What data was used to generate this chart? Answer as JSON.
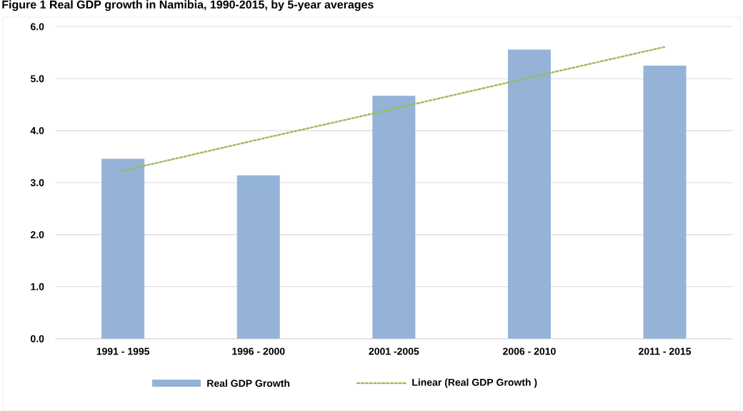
{
  "chart_data": {
    "type": "bar",
    "title": "Figure 1 Real GDP growth in Namibia, 1990-2015, by 5-year averages",
    "categories": [
      "1991 - 1995",
      "1996 - 2000",
      "2001 -2005",
      "2006 - 2010",
      "2011 - 2015"
    ],
    "series": [
      {
        "name": "Real GDP Growth",
        "color": "#95b3d7",
        "values": [
          3.46,
          3.14,
          4.67,
          5.56,
          5.25
        ]
      },
      {
        "name": "Linear (Real GDP Growth )",
        "type": "line",
        "color": "#9bbb59",
        "line_style": "dotted",
        "values": [
          3.23,
          3.83,
          4.42,
          5.02,
          5.61
        ]
      }
    ],
    "ylim": [
      0,
      6
    ],
    "yticks": [
      {
        "value": 0,
        "label": "0.0"
      },
      {
        "value": 1,
        "label": "1.0"
      },
      {
        "value": 2,
        "label": "2.0"
      },
      {
        "value": 3,
        "label": "3.0"
      },
      {
        "value": 4,
        "label": "4.0"
      },
      {
        "value": 5,
        "label": "5.0"
      },
      {
        "value": 6,
        "label": "6.0"
      }
    ],
    "grid": "y",
    "legend": "bottom"
  }
}
